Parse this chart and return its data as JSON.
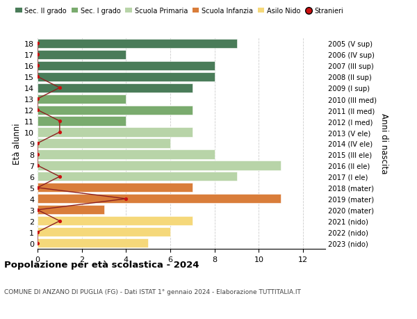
{
  "ages": [
    18,
    17,
    16,
    15,
    14,
    13,
    12,
    11,
    10,
    9,
    8,
    7,
    6,
    5,
    4,
    3,
    2,
    1,
    0
  ],
  "right_labels": [
    "2005 (V sup)",
    "2006 (IV sup)",
    "2007 (III sup)",
    "2008 (II sup)",
    "2009 (I sup)",
    "2010 (III med)",
    "2011 (II med)",
    "2012 (I med)",
    "2013 (V ele)",
    "2014 (IV ele)",
    "2015 (III ele)",
    "2016 (II ele)",
    "2017 (I ele)",
    "2018 (mater)",
    "2019 (mater)",
    "2020 (mater)",
    "2021 (nido)",
    "2022 (nido)",
    "2023 (nido)"
  ],
  "bar_values": [
    9,
    4,
    8,
    8,
    7,
    4,
    7,
    4,
    7,
    6,
    8,
    11,
    9,
    7,
    11,
    3,
    7,
    6,
    5
  ],
  "bar_colors": [
    "#4a7c59",
    "#4a7c59",
    "#4a7c59",
    "#4a7c59",
    "#4a7c59",
    "#7aab6e",
    "#7aab6e",
    "#7aab6e",
    "#b8d4a8",
    "#b8d4a8",
    "#b8d4a8",
    "#b8d4a8",
    "#b8d4a8",
    "#d97d3a",
    "#d97d3a",
    "#d97d3a",
    "#f5d87a",
    "#f5d87a",
    "#f5d87a"
  ],
  "stranieri_values": [
    0,
    0,
    0,
    0,
    1,
    0,
    0,
    1,
    1,
    0,
    0,
    0,
    1,
    0,
    4,
    0,
    1,
    0,
    0
  ],
  "legend_labels": [
    "Sec. II grado",
    "Sec. I grado",
    "Scuola Primaria",
    "Scuola Infanzia",
    "Asilo Nido",
    "Stranieri"
  ],
  "legend_colors": [
    "#4a7c59",
    "#7aab6e",
    "#b8d4a8",
    "#d97d3a",
    "#f5d87a",
    "#cc1111"
  ],
  "title": "Popolazione per età scolastica - 2024",
  "subtitle": "COMUNE DI ANZANO DI PUGLIA (FG) - Dati ISTAT 1° gennaio 2024 - Elaborazione TUTTITALIA.IT",
  "ylabel_left": "Età alunni",
  "ylabel_right": "Anni di nascita",
  "xlim": [
    0,
    13
  ],
  "ylim_min": -0.5,
  "ylim_max": 18.5,
  "background_color": "#ffffff",
  "bar_height": 0.82,
  "grid_color": "#cccccc",
  "stranieri_line_color": "#8B2020",
  "stranieri_dot_color": "#cc1111"
}
